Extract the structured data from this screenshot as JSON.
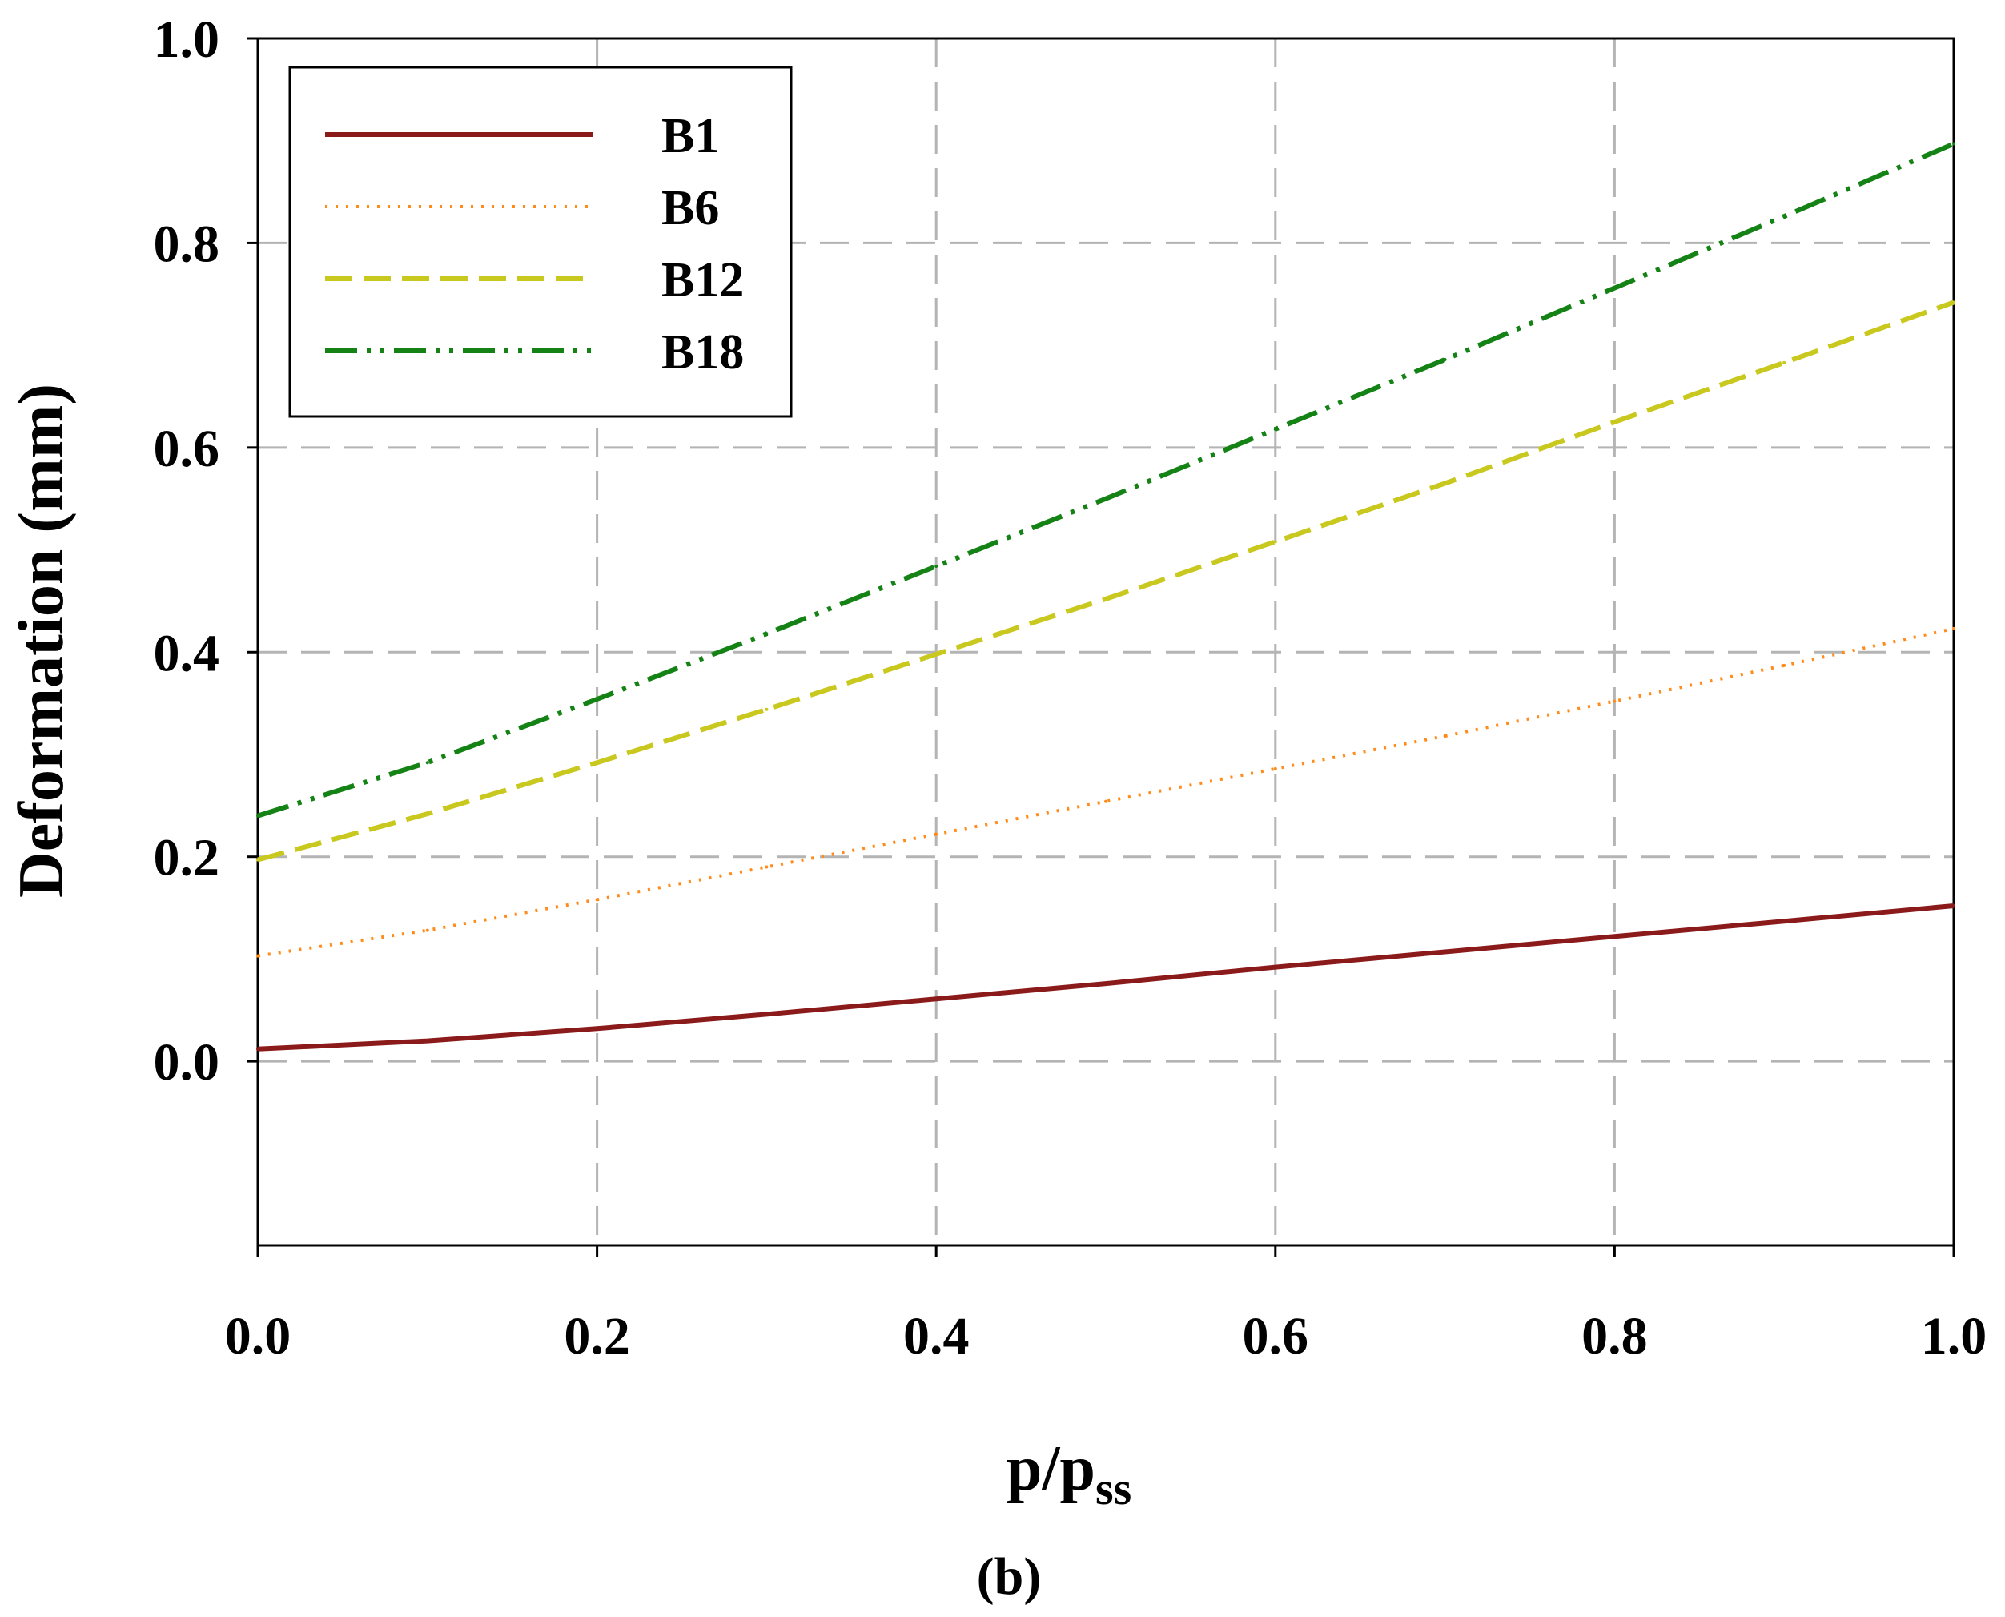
{
  "chart_data": {
    "type": "line",
    "title": "",
    "xlabel": "p/p",
    "xlabel_sub": "ss",
    "ylabel": "Deformation (mm)",
    "caption": "(b)",
    "xlim": [
      0.0,
      1.0
    ],
    "ylim": [
      -0.18,
      1.0
    ],
    "x_ticks": [
      "0.0",
      "0.2",
      "0.4",
      "0.6",
      "0.8",
      "1.0"
    ],
    "y_ticks": [
      "0.0",
      "0.2",
      "0.4",
      "0.6",
      "0.8",
      "1.0"
    ],
    "grid": true,
    "legend_position": "top-left",
    "x": [
      0.0,
      0.1,
      0.2,
      0.3,
      0.4,
      0.5,
      0.6,
      0.7,
      0.8,
      0.9,
      1.0
    ],
    "series": [
      {
        "name": "B1",
        "color": "#8b1a1a",
        "style": "solid",
        "values": [
          0.012,
          0.02,
          0.032,
          0.046,
          0.061,
          0.076,
          0.092,
          0.107,
          0.122,
          0.137,
          0.152
        ]
      },
      {
        "name": "B6",
        "color": "#ff8c1a",
        "style": "dotted",
        "values": [
          0.103,
          0.128,
          0.158,
          0.19,
          0.222,
          0.254,
          0.286,
          0.318,
          0.352,
          0.387,
          0.423
        ]
      },
      {
        "name": "B12",
        "color": "#c8c81e",
        "style": "dashed",
        "values": [
          0.197,
          0.242,
          0.292,
          0.344,
          0.398,
          0.452,
          0.508,
          0.565,
          0.625,
          0.683,
          0.742
        ]
      },
      {
        "name": "B18",
        "color": "#148214",
        "style": "dash-dot-dot",
        "values": [
          0.24,
          0.292,
          0.354,
          0.418,
          0.484,
          0.55,
          0.618,
          0.686,
          0.756,
          0.826,
          0.897
        ]
      }
    ]
  }
}
